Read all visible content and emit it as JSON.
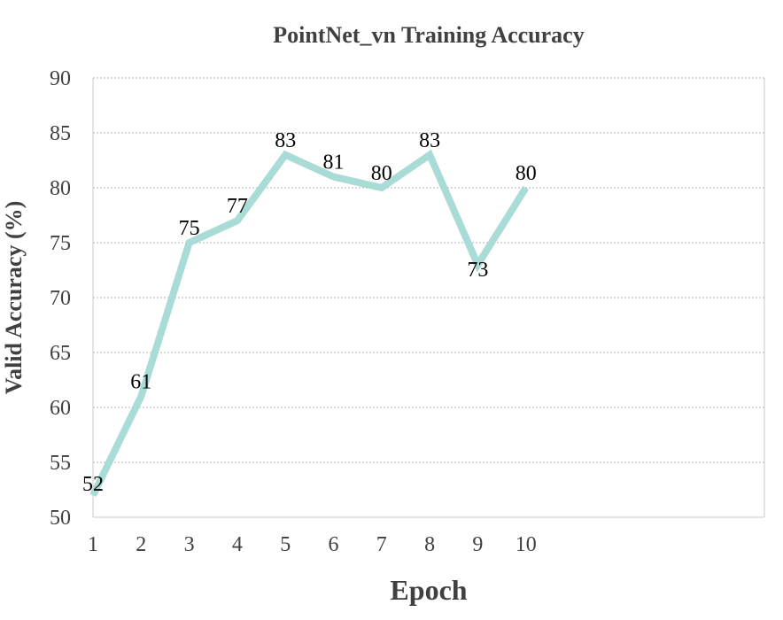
{
  "chart_data": {
    "type": "line",
    "title": "PointNet_vn Training Accuracy",
    "xlabel": "Epoch",
    "ylabel": "Valid Accuracy (%)",
    "x": [
      1,
      2,
      3,
      4,
      5,
      6,
      7,
      8,
      9,
      10
    ],
    "series": [
      {
        "values": [
          52,
          61,
          75,
          77,
          83,
          81,
          80,
          83,
          73,
          80
        ]
      }
    ],
    "data_labels": [
      "52",
      "61",
      "75",
      "77",
      "83",
      "81",
      "80",
      "83",
      "73",
      "80"
    ],
    "x_ticks": [
      "1",
      "2",
      "3",
      "4",
      "5",
      "6",
      "7",
      "8",
      "9",
      "10"
    ],
    "y_ticks": [
      "50",
      "55",
      "60",
      "65",
      "70",
      "75",
      "80",
      "85",
      "90"
    ],
    "ylim": [
      50,
      90
    ],
    "grid": "horizontal dotted",
    "line_color": "#a9dcd6",
    "grid_color": "#b0b0b0",
    "axis_color": "#c8c8c8"
  }
}
